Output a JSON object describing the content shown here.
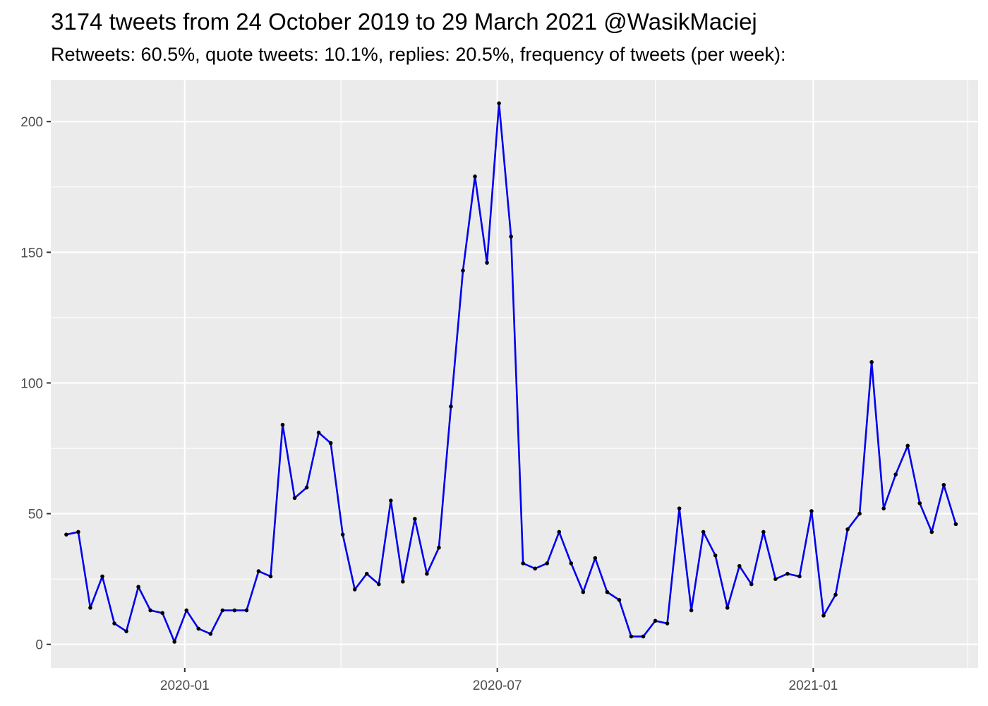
{
  "chart_data": {
    "type": "line",
    "title": "3174 tweets from 24 October 2019 to 29 March 2021 @WasikMaciej",
    "subtitle": "Retweets: 60.5%, quote tweets: 10.1%, replies: 20.5%, frequency of tweets (per week):",
    "xlabel": "",
    "ylabel": "",
    "x_range": [
      "2019-10-15",
      "2021-04-07"
    ],
    "ylim": [
      -9,
      216
    ],
    "x_ticks": [
      {
        "date": "2020-01-01",
        "label": "2020-01"
      },
      {
        "date": "2020-07-01",
        "label": "2020-07"
      },
      {
        "date": "2021-01-01",
        "label": "2021-01"
      }
    ],
    "x_minor_ticks": [
      "2019-10-01",
      "2020-04-01",
      "2020-10-01",
      "2021-04-01"
    ],
    "y_ticks": [
      0,
      50,
      100,
      150,
      200
    ],
    "y_minor_ticks": [
      25,
      75,
      125,
      175
    ],
    "grid": true,
    "colors": {
      "line": "#0000ee",
      "point": "#000000",
      "panel": "#ebebeb",
      "grid": "#ffffff"
    },
    "series": [
      {
        "points": [
          {
            "x": "2019-10-24",
            "y": 42
          },
          {
            "x": "2019-10-31",
            "y": 43
          },
          {
            "x": "2019-11-07",
            "y": 14
          },
          {
            "x": "2019-11-14",
            "y": 26
          },
          {
            "x": "2019-11-21",
            "y": 8
          },
          {
            "x": "2019-11-28",
            "y": 5
          },
          {
            "x": "2019-12-05",
            "y": 22
          },
          {
            "x": "2019-12-12",
            "y": 13
          },
          {
            "x": "2019-12-19",
            "y": 12
          },
          {
            "x": "2019-12-26",
            "y": 1
          },
          {
            "x": "2020-01-02",
            "y": 13
          },
          {
            "x": "2020-01-09",
            "y": 6
          },
          {
            "x": "2020-01-16",
            "y": 4
          },
          {
            "x": "2020-01-23",
            "y": 13
          },
          {
            "x": "2020-01-30",
            "y": 13
          },
          {
            "x": "2020-02-06",
            "y": 13
          },
          {
            "x": "2020-02-13",
            "y": 28
          },
          {
            "x": "2020-02-20",
            "y": 26
          },
          {
            "x": "2020-02-27",
            "y": 84
          },
          {
            "x": "2020-03-05",
            "y": 56
          },
          {
            "x": "2020-03-12",
            "y": 60
          },
          {
            "x": "2020-03-19",
            "y": 81
          },
          {
            "x": "2020-03-26",
            "y": 77
          },
          {
            "x": "2020-04-02",
            "y": 42
          },
          {
            "x": "2020-04-09",
            "y": 21
          },
          {
            "x": "2020-04-16",
            "y": 27
          },
          {
            "x": "2020-04-23",
            "y": 23
          },
          {
            "x": "2020-04-30",
            "y": 55
          },
          {
            "x": "2020-05-07",
            "y": 24
          },
          {
            "x": "2020-05-14",
            "y": 48
          },
          {
            "x": "2020-05-21",
            "y": 27
          },
          {
            "x": "2020-05-28",
            "y": 37
          },
          {
            "x": "2020-06-04",
            "y": 91
          },
          {
            "x": "2020-06-11",
            "y": 143
          },
          {
            "x": "2020-06-18",
            "y": 179
          },
          {
            "x": "2020-06-25",
            "y": 146
          },
          {
            "x": "2020-07-02",
            "y": 207
          },
          {
            "x": "2020-07-09",
            "y": 156
          },
          {
            "x": "2020-07-16",
            "y": 31
          },
          {
            "x": "2020-07-23",
            "y": 29
          },
          {
            "x": "2020-07-30",
            "y": 31
          },
          {
            "x": "2020-08-06",
            "y": 43
          },
          {
            "x": "2020-08-13",
            "y": 31
          },
          {
            "x": "2020-08-20",
            "y": 20
          },
          {
            "x": "2020-08-27",
            "y": 33
          },
          {
            "x": "2020-09-03",
            "y": 20
          },
          {
            "x": "2020-09-10",
            "y": 17
          },
          {
            "x": "2020-09-17",
            "y": 3
          },
          {
            "x": "2020-09-24",
            "y": 3
          },
          {
            "x": "2020-10-01",
            "y": 9
          },
          {
            "x": "2020-10-08",
            "y": 8
          },
          {
            "x": "2020-10-15",
            "y": 52
          },
          {
            "x": "2020-10-22",
            "y": 13
          },
          {
            "x": "2020-10-29",
            "y": 43
          },
          {
            "x": "2020-11-05",
            "y": 34
          },
          {
            "x": "2020-11-12",
            "y": 14
          },
          {
            "x": "2020-11-19",
            "y": 30
          },
          {
            "x": "2020-11-26",
            "y": 23
          },
          {
            "x": "2020-12-03",
            "y": 43
          },
          {
            "x": "2020-12-10",
            "y": 25
          },
          {
            "x": "2020-12-17",
            "y": 27
          },
          {
            "x": "2020-12-24",
            "y": 26
          },
          {
            "x": "2020-12-31",
            "y": 51
          },
          {
            "x": "2021-01-07",
            "y": 11
          },
          {
            "x": "2021-01-14",
            "y": 19
          },
          {
            "x": "2021-01-21",
            "y": 44
          },
          {
            "x": "2021-01-28",
            "y": 50
          },
          {
            "x": "2021-02-04",
            "y": 108
          },
          {
            "x": "2021-02-11",
            "y": 52
          },
          {
            "x": "2021-02-18",
            "y": 65
          },
          {
            "x": "2021-02-25",
            "y": 76
          },
          {
            "x": "2021-03-04",
            "y": 54
          },
          {
            "x": "2021-03-11",
            "y": 43
          },
          {
            "x": "2021-03-18",
            "y": 61
          },
          {
            "x": "2021-03-25",
            "y": 46
          }
        ]
      }
    ]
  }
}
